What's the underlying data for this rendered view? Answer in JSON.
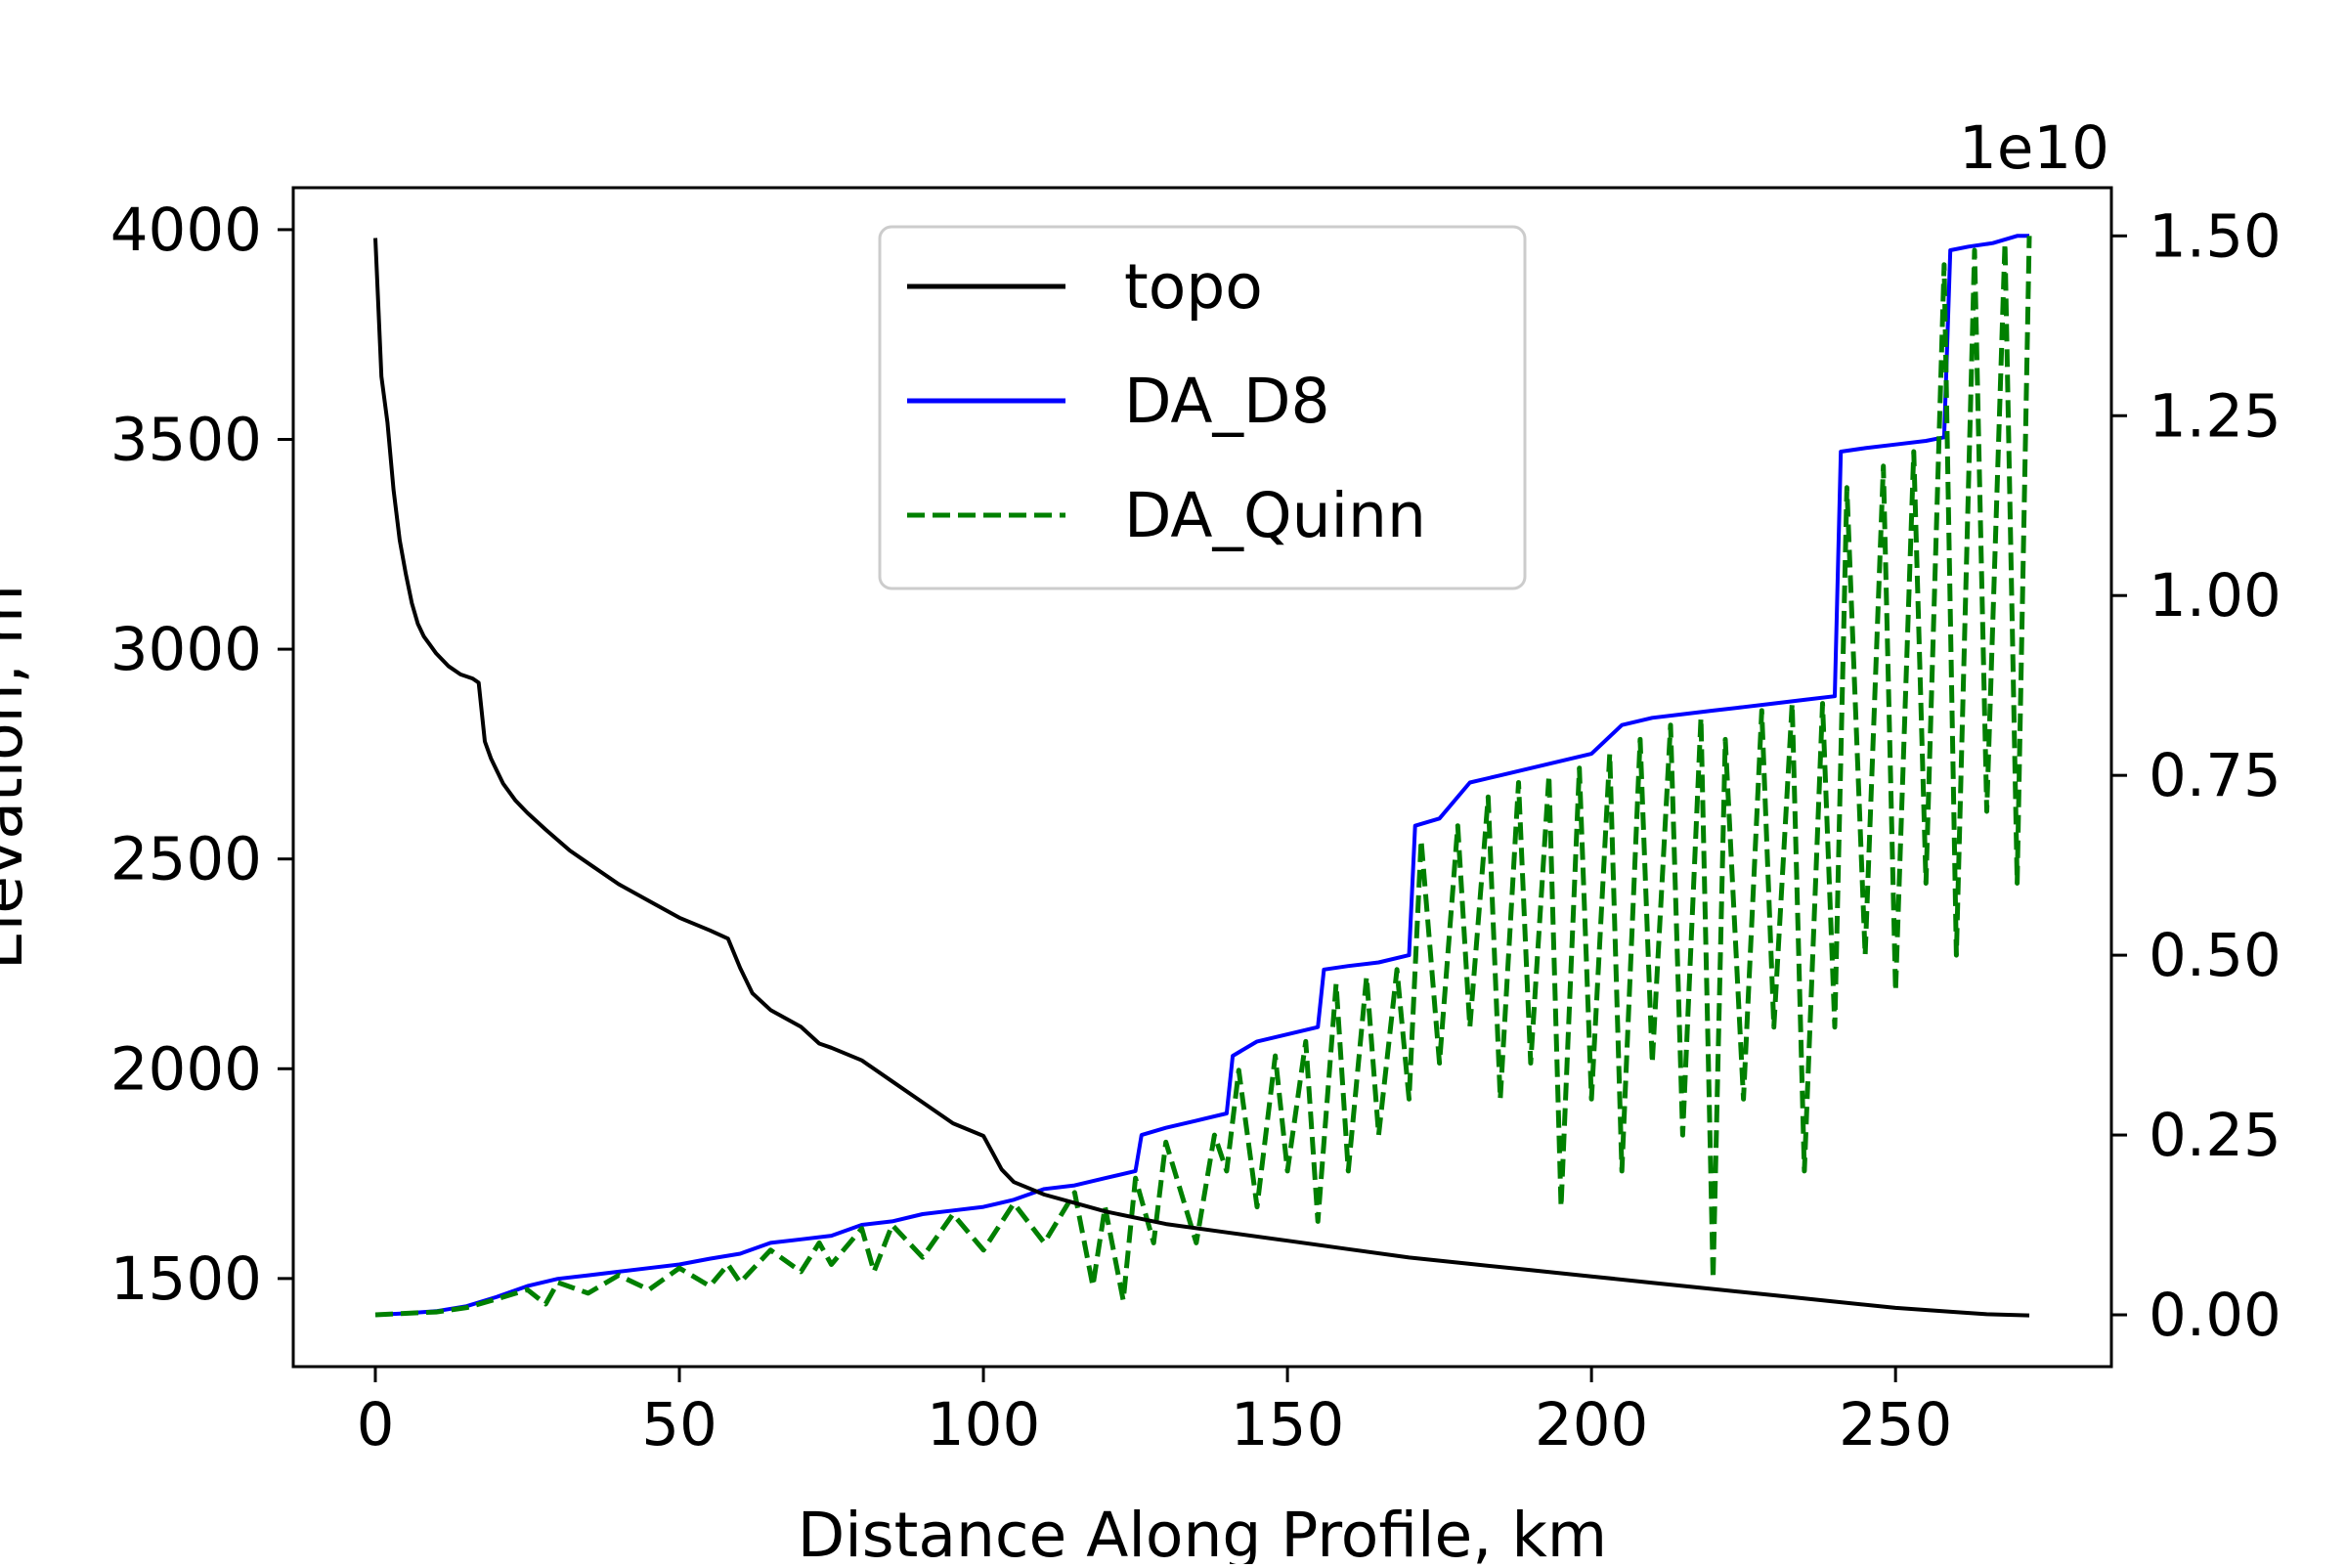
{
  "chart_data": {
    "type": "line",
    "title": "",
    "xlabel": "Distance Along Profile, km",
    "ylabel": "Elevation, m",
    "y2label": "",
    "y2_offset_label": "1e10",
    "xlim": [
      -13.5,
      285.5
    ],
    "ylim": [
      1290,
      4100
    ],
    "y2lim": [
      -720000000.0,
      15670000000.0
    ],
    "grid": false,
    "legend_position": "top-center",
    "x_ticks": [
      0,
      50,
      100,
      150,
      200,
      250
    ],
    "y_ticks": [
      1500,
      2000,
      2500,
      3000,
      3500,
      4000
    ],
    "y2_ticks": [
      0,
      2500000000.0,
      5000000000.0,
      7500000000.0,
      10000000000.0,
      12500000000.0,
      15000000000.0
    ],
    "y2_tick_labels": [
      "0.00",
      "0.25",
      "0.50",
      "0.75",
      "1.00",
      "1.25",
      "1.50"
    ],
    "series": [
      {
        "name": "topo",
        "axis": "left",
        "color": "#000000",
        "style": "solid",
        "x": [
          0,
          1,
          2,
          3,
          4,
          5,
          6,
          7,
          8,
          9,
          10,
          12,
          14,
          16,
          17,
          18,
          19,
          20,
          21,
          23,
          25,
          28,
          32,
          36,
          40,
          45,
          50,
          55,
          58,
          60,
          62,
          65,
          70,
          73,
          75,
          80,
          85,
          90,
          95,
          100,
          103,
          105,
          110,
          115,
          120,
          130,
          140,
          150,
          160,
          170,
          180,
          190,
          200,
          210,
          220,
          230,
          240,
          250,
          260,
          265,
          272
        ],
        "y": [
          3980,
          3650,
          3540,
          3380,
          3260,
          3180,
          3110,
          3060,
          3030,
          3010,
          2990,
          2960,
          2940,
          2930,
          2920,
          2780,
          2740,
          2710,
          2680,
          2640,
          2610,
          2570,
          2520,
          2480,
          2440,
          2400,
          2360,
          2330,
          2310,
          2240,
          2180,
          2140,
          2100,
          2060,
          2050,
          2020,
          1970,
          1920,
          1870,
          1840,
          1760,
          1730,
          1700,
          1680,
          1660,
          1630,
          1610,
          1590,
          1570,
          1550,
          1535,
          1520,
          1505,
          1490,
          1475,
          1460,
          1445,
          1430,
          1420,
          1415,
          1412
        ]
      },
      {
        "name": "DA_D8",
        "axis": "right",
        "color": "#0000ff",
        "style": "solid",
        "x": [
          0,
          5,
          10,
          15,
          20,
          25,
          30,
          35,
          40,
          45,
          50,
          55,
          60,
          65,
          70,
          75,
          80,
          85,
          90,
          95,
          100,
          105,
          110,
          115,
          120,
          125,
          126,
          130,
          135,
          140,
          141,
          145,
          150,
          155,
          156,
          160,
          165,
          170,
          171,
          175,
          180,
          185,
          190,
          195,
          200,
          205,
          210,
          215,
          220,
          225,
          230,
          235,
          240,
          241,
          245,
          250,
          255,
          258,
          259,
          262,
          266,
          270,
          272
        ],
        "y": [
          0,
          20000000.0,
          50000000.0,
          120000000.0,
          250000000.0,
          400000000.0,
          500000000.0,
          550000000.0,
          600000000.0,
          650000000.0,
          700000000.0,
          780000000.0,
          850000000.0,
          1000000000.0,
          1050000000.0,
          1100000000.0,
          1250000000.0,
          1300000000.0,
          1400000000.0,
          1450000000.0,
          1500000000.0,
          1600000000.0,
          1750000000.0,
          1800000000.0,
          1900000000.0,
          2000000000.0,
          2500000000.0,
          2600000000.0,
          2700000000.0,
          2800000000.0,
          3600000000.0,
          3800000000.0,
          3900000000.0,
          4000000000.0,
          4800000000.0,
          4850000000.0,
          4900000000.0,
          5000000000.0,
          6800000000.0,
          6900000000.0,
          7400000000.0,
          7500000000.0,
          7600000000.0,
          7700000000.0,
          7800000000.0,
          8200000000.0,
          8300000000.0,
          8350000000.0,
          8400000000.0,
          8450000000.0,
          8500000000.0,
          8550000000.0,
          8600000000.0,
          12000000000.0,
          12050000000.0,
          12100000000.0,
          12150000000.0,
          12200000000.0,
          14800000000.0,
          14850000000.0,
          14900000000.0,
          15000000000.0,
          15000000000.0
        ]
      },
      {
        "name": "DA_Quinn",
        "axis": "right",
        "color": "#008000",
        "style": "dashed",
        "x": [
          0,
          5,
          10,
          15,
          20,
          25,
          28,
          30,
          35,
          40,
          45,
          50,
          55,
          58,
          60,
          65,
          70,
          73,
          75,
          80,
          82,
          85,
          90,
          95,
          100,
          105,
          110,
          115,
          118,
          120,
          123,
          125,
          128,
          130,
          135,
          138,
          140,
          142,
          145,
          148,
          150,
          153,
          155,
          158,
          160,
          163,
          165,
          168,
          170,
          172,
          175,
          178,
          180,
          183,
          185,
          188,
          190,
          193,
          195,
          198,
          200,
          203,
          205,
          208,
          210,
          213,
          215,
          218,
          220,
          222,
          225,
          228,
          230,
          233,
          235,
          238,
          240,
          242,
          245,
          248,
          250,
          253,
          255,
          258,
          260,
          263,
          265,
          268,
          270,
          272
        ],
        "y": [
          0,
          20000000.0,
          40000000.0,
          100000000.0,
          220000000.0,
          350000000.0,
          150000000.0,
          450000000.0,
          300000000.0,
          550000000.0,
          350000000.0,
          650000000.0,
          400000000.0,
          700000000.0,
          450000000.0,
          900000000.0,
          600000000.0,
          1000000000.0,
          700000000.0,
          1200000000.0,
          600000000.0,
          1250000000.0,
          800000000.0,
          1400000000.0,
          900000000.0,
          1550000000.0,
          1000000000.0,
          1700000000.0,
          400000000.0,
          1500000000.0,
          200000000.0,
          1900000000.0,
          1000000000.0,
          2400000000.0,
          1000000000.0,
          2500000000.0,
          2000000000.0,
          3400000000.0,
          1500000000.0,
          3600000000.0,
          2000000000.0,
          3800000000.0,
          1300000000.0,
          4600000000.0,
          2000000000.0,
          4700000000.0,
          2500000000.0,
          4800000000.0,
          3000000000.0,
          6600000000.0,
          3500000000.0,
          6800000000.0,
          4000000000.0,
          7200000000.0,
          3000000000.0,
          7400000000.0,
          3500000000.0,
          7500000000.0,
          1500000000.0,
          7600000000.0,
          3000000000.0,
          7800000000.0,
          2000000000.0,
          8000000000.0,
          3500000000.0,
          8200000000.0,
          2500000000.0,
          8300000000.0,
          500000000.0,
          8000000000.0,
          3000000000.0,
          8400000000.0,
          4000000000.0,
          8500000000.0,
          2000000000.0,
          8500000000.0,
          4000000000.0,
          11500000000.0,
          5000000000.0,
          11800000000.0,
          4500000000.0,
          12000000000.0,
          6000000000.0,
          14600000000.0,
          5000000000.0,
          14800000000.0,
          7000000000.0,
          14900000000.0,
          6000000000.0,
          15000000000.0
        ]
      }
    ]
  }
}
